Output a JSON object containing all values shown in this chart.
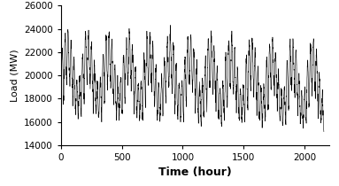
{
  "ylabel": "Load (MW)",
  "xlabel": "Time (hour)",
  "xlim": [
    0,
    2200
  ],
  "ylim": [
    14000,
    26000
  ],
  "yticks": [
    14000,
    16000,
    18000,
    20000,
    22000,
    24000,
    26000
  ],
  "xticks": [
    0,
    500,
    1000,
    1500,
    2000
  ],
  "line_color": "#000000",
  "line_width": 0.4,
  "figsize": [
    3.83,
    2.1
  ],
  "dpi": 100,
  "ylabel_fontsize": 8,
  "xlabel_fontsize": 9,
  "xlabel_fontweight": "bold",
  "tick_fontsize": 7.5,
  "background_color": "#ffffff",
  "n_hours": 2160,
  "base_load": 20000,
  "daily_amplitude": 4000,
  "weekly_amplitude": 2000,
  "noise_std": 300
}
